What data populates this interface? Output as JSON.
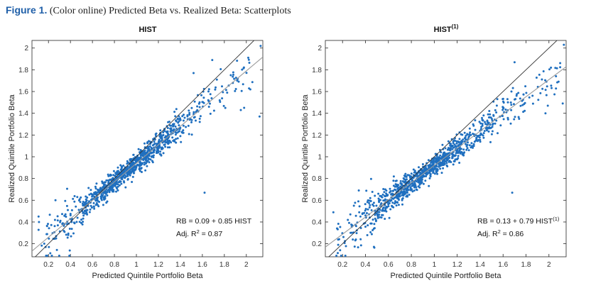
{
  "caption": {
    "figure_label": "Figure 1.",
    "text": "(Color online) Predicted Beta vs. Realized Beta: Scatterplots"
  },
  "colors": {
    "points": "#1f6fbf",
    "diagonal": "#333333",
    "fit": "#9a9a9a"
  },
  "chart_data": [
    {
      "type": "scatter",
      "title": "HIST",
      "title_sup": "",
      "xlabel": "Predicted Quintile Portfolio Beta",
      "ylabel": "Realized Quintile Portfolio Beta",
      "xlim": [
        0.05,
        2.15
      ],
      "ylim": [
        0.08,
        2.07
      ],
      "xticks": [
        "0.2",
        "0.4",
        "0.6",
        "0.8",
        "1",
        "1.2",
        "1.4",
        "1.6",
        "1.8",
        "2"
      ],
      "yticks": [
        "0.2",
        "0.4",
        "0.6",
        "0.8",
        "1",
        "1.2",
        "1.4",
        "1.6",
        "1.8",
        "2"
      ],
      "fit_line": {
        "intercept": 0.09,
        "slope": 0.85
      },
      "reference_line": "45-degree",
      "n_points_approx": 1000,
      "annotation_line1": "RB = 0.09 + 0.85 HIST",
      "annotation_line1_sup": "",
      "annotation_line2_prefix": "Adj. R",
      "annotation_line2_sup": "2",
      "annotation_line2_suffix": " = 0.87",
      "sample_points": [
        [
          2.13,
          2.02
        ],
        [
          2.12,
          1.37
        ],
        [
          1.98,
          1.45
        ],
        [
          1.95,
          1.43
        ],
        [
          1.69,
          1.89
        ],
        [
          1.62,
          0.67
        ],
        [
          1.52,
          1.77
        ],
        [
          1.36,
          1.13
        ],
        [
          1.16,
          1.06
        ],
        [
          0.98,
          0.97
        ],
        [
          0.77,
          0.79
        ],
        [
          0.57,
          0.59
        ],
        [
          0.41,
          0.4
        ],
        [
          0.27,
          0.27
        ],
        [
          0.11,
          0.45
        ]
      ]
    },
    {
      "type": "scatter",
      "title": "HIST",
      "title_sup": "(1)",
      "xlabel": "Predicted Quintile Portfolio Beta",
      "ylabel": "Realized Quintile Portfolio Beta",
      "xlim": [
        0.05,
        2.15
      ],
      "ylim": [
        0.08,
        2.07
      ],
      "xticks": [
        "0.2",
        "0.4",
        "0.6",
        "0.8",
        "1",
        "1.2",
        "1.4",
        "1.6",
        "1.8",
        "2"
      ],
      "yticks": [
        "0.2",
        "0.4",
        "0.6",
        "0.8",
        "1",
        "1.2",
        "1.4",
        "1.6",
        "1.8",
        "2"
      ],
      "fit_line": {
        "intercept": 0.13,
        "slope": 0.79
      },
      "reference_line": "45-degree",
      "n_points_approx": 1000,
      "annotation_line1": "RB = 0.13 + 0.79 HIST",
      "annotation_line1_sup": "(1)",
      "annotation_line2_prefix": "Adj. R",
      "annotation_line2_sup": "2",
      "annotation_line2_suffix": " = 0.86",
      "sample_points": [
        [
          2.13,
          2.03
        ],
        [
          2.12,
          1.49
        ],
        [
          1.99,
          1.47
        ],
        [
          1.97,
          1.4
        ],
        [
          1.7,
          1.87
        ],
        [
          1.68,
          0.67
        ],
        [
          1.55,
          1.53
        ],
        [
          1.4,
          1.24
        ],
        [
          1.18,
          1.09
        ],
        [
          1.0,
          0.98
        ],
        [
          0.79,
          0.81
        ],
        [
          0.59,
          0.6
        ],
        [
          0.42,
          0.37
        ],
        [
          0.27,
          0.3
        ],
        [
          0.12,
          0.49
        ]
      ]
    }
  ]
}
